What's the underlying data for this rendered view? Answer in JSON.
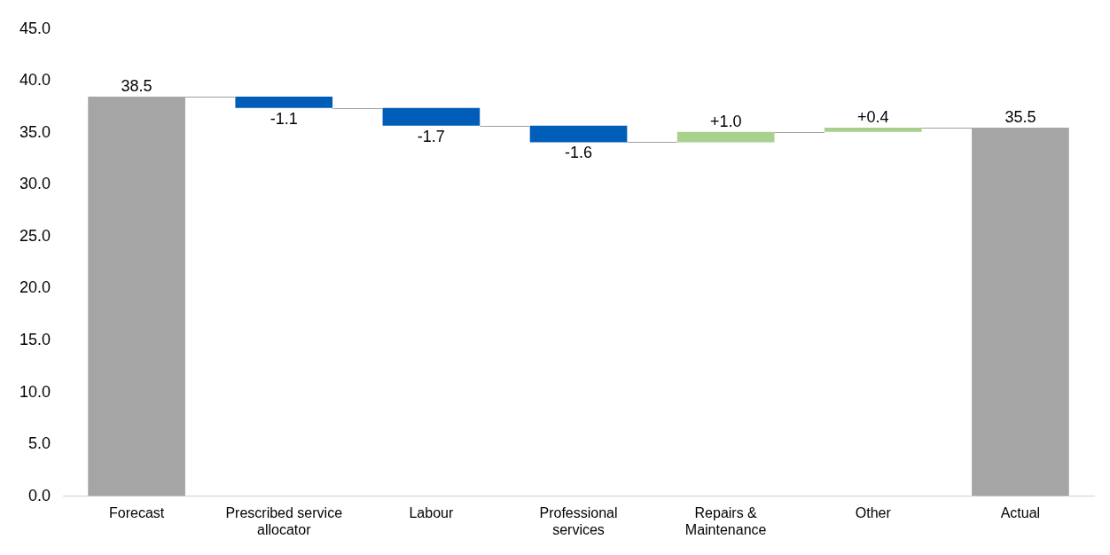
{
  "chart_data": {
    "type": "bar",
    "categories": [
      "Forecast",
      "Prescribed service allocator",
      "Labour",
      "Professional services",
      "Repairs & Maintenance",
      "Other",
      "Actual"
    ],
    "values": [
      38.5,
      -1.1,
      -1.7,
      -1.6,
      1.0,
      0.4,
      35.5
    ],
    "base": [
      0,
      38.5,
      37.4,
      35.7,
      34.1,
      35.1,
      0
    ],
    "colors": [
      "#a5a5a5",
      "#005eb8",
      "#005eb8",
      "#005eb8",
      "#a9d18e",
      "#a9d18e",
      "#a5a5a5"
    ],
    "value_labels": [
      "38.5",
      "-1.1",
      "-1.7",
      "-1.6",
      "+1.0",
      "+0.4",
      "35.5"
    ],
    "ylim": [
      0,
      45
    ],
    "yticks": [
      {
        "value": 0,
        "label": "0.0"
      },
      {
        "value": 5,
        "label": "5.0"
      },
      {
        "value": 10,
        "label": "10.0"
      },
      {
        "value": 15,
        "label": "15.0"
      },
      {
        "value": 20,
        "label": "20.0"
      },
      {
        "value": 25,
        "label": "25.0"
      },
      {
        "value": 30,
        "label": "30.0"
      },
      {
        "value": 35,
        "label": "35.0"
      },
      {
        "value": 40,
        "label": "40.0"
      },
      {
        "value": 45,
        "label": "45.0"
      }
    ],
    "grid": false,
    "legend": false
  }
}
